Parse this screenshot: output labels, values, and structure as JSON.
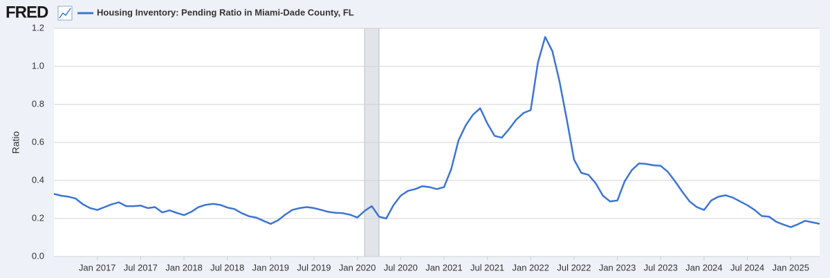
{
  "logo": "FRED",
  "chart_data": {
    "type": "line",
    "y_label": "Ratio",
    "x": [
      "2016-07",
      "2016-08",
      "2016-09",
      "2016-10",
      "2016-11",
      "2016-12",
      "2017-01",
      "2017-02",
      "2017-03",
      "2017-04",
      "2017-05",
      "2017-06",
      "2017-07",
      "2017-08",
      "2017-09",
      "2017-10",
      "2017-11",
      "2017-12",
      "2018-01",
      "2018-02",
      "2018-03",
      "2018-04",
      "2018-05",
      "2018-06",
      "2018-07",
      "2018-08",
      "2018-09",
      "2018-10",
      "2018-11",
      "2018-12",
      "2019-01",
      "2019-02",
      "2019-03",
      "2019-04",
      "2019-05",
      "2019-06",
      "2019-07",
      "2019-08",
      "2019-09",
      "2019-10",
      "2019-11",
      "2019-12",
      "2020-01",
      "2020-02",
      "2020-03",
      "2020-04",
      "2020-05",
      "2020-06",
      "2020-07",
      "2020-08",
      "2020-09",
      "2020-10",
      "2020-11",
      "2020-12",
      "2021-01",
      "2021-02",
      "2021-03",
      "2021-04",
      "2021-05",
      "2021-06",
      "2021-07",
      "2021-08",
      "2021-09",
      "2021-10",
      "2021-11",
      "2021-12",
      "2022-01",
      "2022-02",
      "2022-03",
      "2022-04",
      "2022-05",
      "2022-06",
      "2022-07",
      "2022-08",
      "2022-09",
      "2022-10",
      "2022-11",
      "2022-12",
      "2023-01",
      "2023-02",
      "2023-03",
      "2023-04",
      "2023-05",
      "2023-06",
      "2023-07",
      "2023-08",
      "2023-09",
      "2023-10",
      "2023-11",
      "2023-12",
      "2024-01",
      "2024-02",
      "2024-03",
      "2024-04",
      "2024-05",
      "2024-06",
      "2024-07",
      "2024-08",
      "2024-09",
      "2024-10",
      "2024-11",
      "2024-12",
      "2025-01",
      "2025-02",
      "2025-03",
      "2025-04",
      "2025-05"
    ],
    "series": [
      {
        "name": "Housing Inventory: Pending Ratio in Miami-Dade County, FL",
        "color": "#3b74d3",
        "values": [
          0.33,
          0.32,
          0.315,
          0.305,
          0.275,
          0.255,
          0.245,
          0.26,
          0.275,
          0.285,
          0.265,
          0.265,
          0.268,
          0.255,
          0.26,
          0.232,
          0.243,
          0.23,
          0.218,
          0.235,
          0.26,
          0.272,
          0.277,
          0.272,
          0.258,
          0.25,
          0.228,
          0.212,
          0.205,
          0.188,
          0.172,
          0.19,
          0.22,
          0.245,
          0.255,
          0.26,
          0.255,
          0.245,
          0.235,
          0.23,
          0.228,
          0.22,
          0.205,
          0.24,
          0.265,
          0.21,
          0.2,
          0.27,
          0.32,
          0.345,
          0.355,
          0.37,
          0.365,
          0.355,
          0.365,
          0.46,
          0.61,
          0.69,
          0.745,
          0.78,
          0.7,
          0.635,
          0.625,
          0.67,
          0.72,
          0.755,
          0.77,
          1.02,
          1.155,
          1.08,
          0.92,
          0.72,
          0.51,
          0.44,
          0.43,
          0.385,
          0.32,
          0.29,
          0.295,
          0.395,
          0.455,
          0.49,
          0.487,
          0.48,
          0.477,
          0.445,
          0.395,
          0.34,
          0.29,
          0.26,
          0.245,
          0.295,
          0.315,
          0.322,
          0.31,
          0.29,
          0.27,
          0.245,
          0.213,
          0.21,
          0.183,
          0.168,
          0.155,
          0.17,
          0.188,
          0.18,
          0.172
        ]
      }
    ],
    "xlim": [
      "2016-07",
      "2025-05"
    ],
    "xticks": [
      {
        "value": "2017-01",
        "label": "Jan 2017"
      },
      {
        "value": "2017-07",
        "label": "Jul 2017"
      },
      {
        "value": "2018-01",
        "label": "Jan 2018"
      },
      {
        "value": "2018-07",
        "label": "Jul 2018"
      },
      {
        "value": "2019-01",
        "label": "Jan 2019"
      },
      {
        "value": "2019-07",
        "label": "Jul 2019"
      },
      {
        "value": "2020-01",
        "label": "Jan 2020"
      },
      {
        "value": "2020-07",
        "label": "Jul 2020"
      },
      {
        "value": "2021-01",
        "label": "Jan 2021"
      },
      {
        "value": "2021-07",
        "label": "Jul 2021"
      },
      {
        "value": "2022-01",
        "label": "Jan 2022"
      },
      {
        "value": "2022-07",
        "label": "Jul 2022"
      },
      {
        "value": "2023-01",
        "label": "Jan 2023"
      },
      {
        "value": "2023-07",
        "label": "Jul 2023"
      },
      {
        "value": "2024-01",
        "label": "Jan 2024"
      },
      {
        "value": "2024-07",
        "label": "Jul 2024"
      },
      {
        "value": "2025-01",
        "label": "Jan 2025"
      }
    ],
    "ylim": [
      0,
      1.2
    ],
    "yticks": [
      {
        "value": 0,
        "label": "0.0"
      },
      0.2,
      0.4,
      0.6,
      0.8,
      {
        "value": 1,
        "label": "1.0"
      },
      1.2
    ],
    "grid": true,
    "shaded": [
      {
        "start": "2020-02",
        "end": "2020-04",
        "color": "#e1e5ea"
      }
    ]
  }
}
